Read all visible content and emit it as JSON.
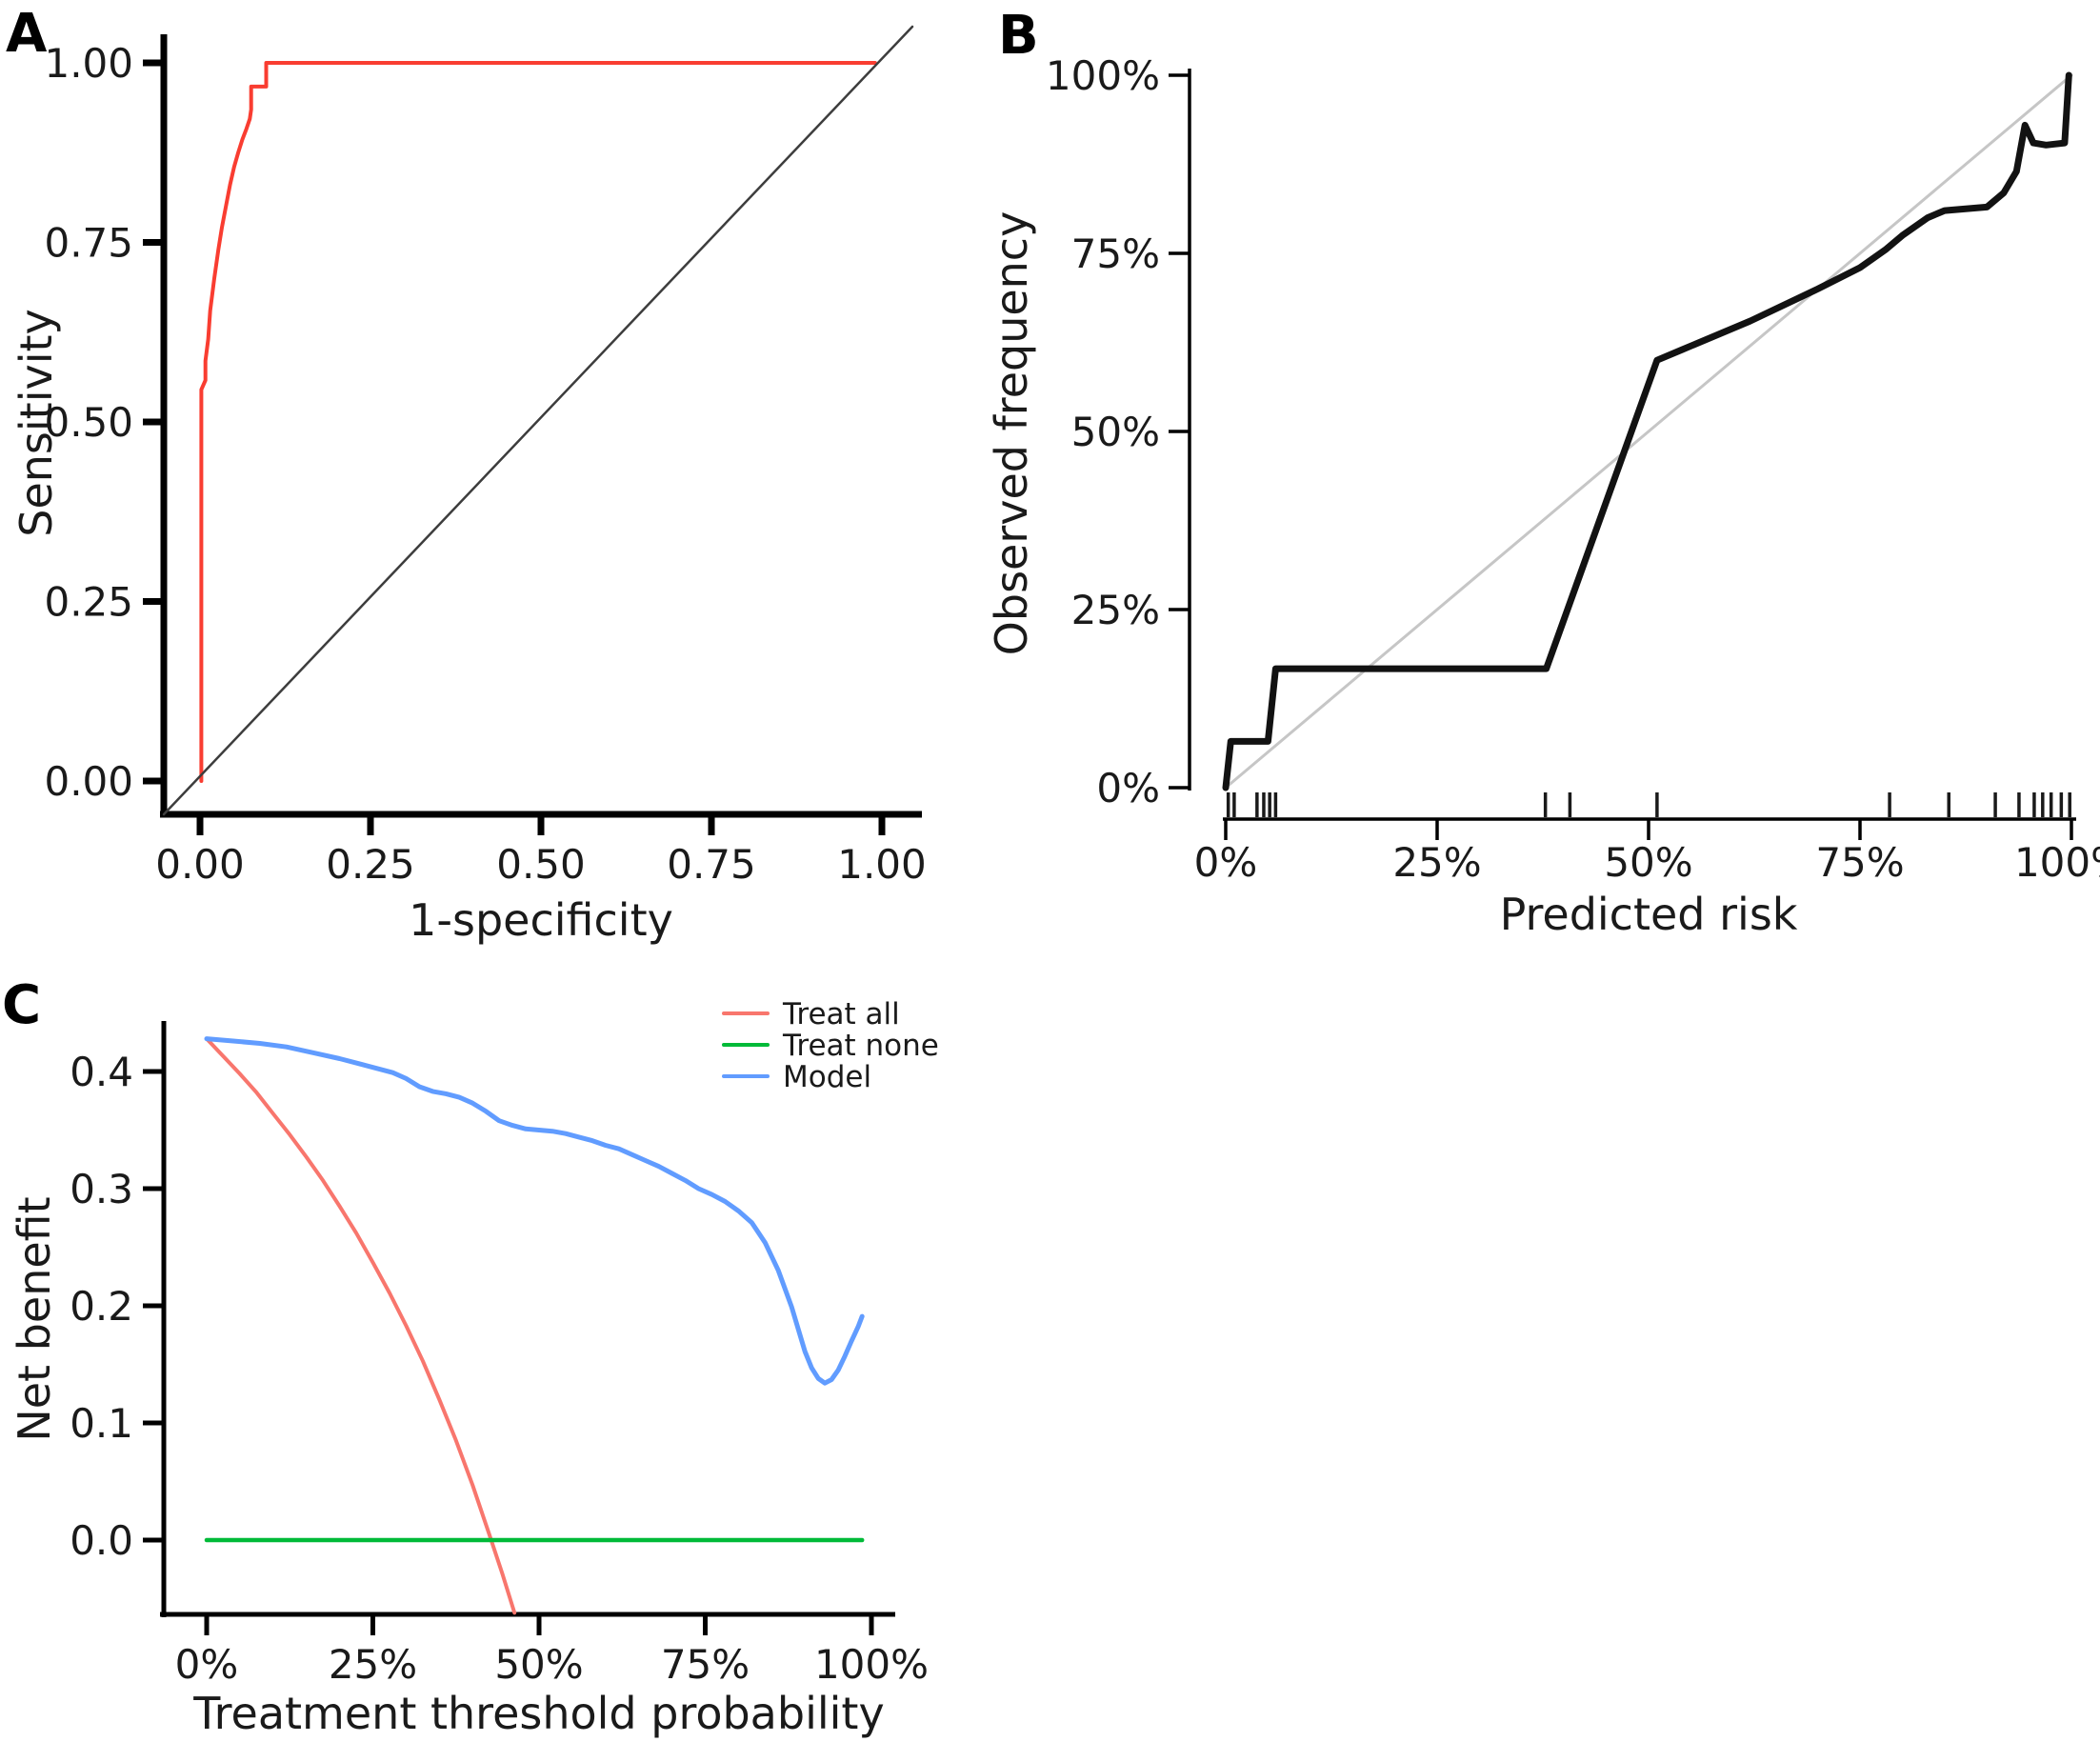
{
  "panels": {
    "a": {
      "label": "A"
    },
    "b": {
      "label": "B"
    },
    "c": {
      "label": "C"
    }
  },
  "chart_data": [
    {
      "panel": "A",
      "type": "line",
      "title": "",
      "xlabel": "1-specificity",
      "ylabel": "Sensitivity",
      "xlim": [
        0,
        1
      ],
      "ylim": [
        0,
        1
      ],
      "grid": false,
      "x_ticks": {
        "values": [
          0,
          0.25,
          0.5,
          0.75,
          1
        ],
        "labels": [
          "0.00",
          "0.25",
          "0.50",
          "0.75",
          "1.00"
        ]
      },
      "y_ticks": {
        "values": [
          0,
          0.25,
          0.5,
          0.75,
          1
        ],
        "labels": [
          "0.00",
          "0.25",
          "0.50",
          "0.75",
          "1.00"
        ]
      },
      "series": [
        {
          "name": "roc-curve",
          "color": "#f93d31",
          "width": 4,
          "points": [
            [
              0.002,
              0
            ],
            [
              0.002,
              0.545
            ],
            [
              0.008,
              0.558
            ],
            [
              0.008,
              0.585
            ],
            [
              0.012,
              0.615
            ],
            [
              0.015,
              0.655
            ],
            [
              0.021,
              0.7
            ],
            [
              0.027,
              0.74
            ],
            [
              0.032,
              0.77
            ],
            [
              0.038,
              0.8
            ],
            [
              0.044,
              0.83
            ],
            [
              0.05,
              0.855
            ],
            [
              0.056,
              0.875
            ],
            [
              0.062,
              0.893
            ],
            [
              0.068,
              0.908
            ],
            [
              0.073,
              0.922
            ],
            [
              0.075,
              0.935
            ],
            [
              0.075,
              0.967
            ],
            [
              0.097,
              0.967
            ],
            [
              0.097,
              1
            ],
            [
              0.99,
              1
            ]
          ]
        },
        {
          "name": "chance-diagonal",
          "color": "#3d3d3d",
          "width": 2.5,
          "extend_to_plot_box": true,
          "points": [
            [
              0,
              0
            ],
            [
              1,
              1
            ]
          ]
        }
      ]
    },
    {
      "panel": "B",
      "type": "line",
      "title": "",
      "xlabel": "Predicted risk",
      "ylabel": "Observed frequency",
      "xlim": [
        0,
        100
      ],
      "ylim": [
        0,
        100
      ],
      "grid": false,
      "x_ticks": {
        "values": [
          0,
          25,
          50,
          75,
          100
        ],
        "labels": [
          "0%",
          "25%",
          "50%",
          "75%",
          "100%"
        ]
      },
      "y_ticks": {
        "values": [
          0,
          25,
          50,
          75,
          100
        ],
        "labels": [
          "0%",
          "25%",
          "50%",
          "75%",
          "100%"
        ]
      },
      "series": [
        {
          "name": "ideal-diagonal",
          "color": "#c6c6c6",
          "width": 3,
          "points": [
            [
              0,
              0
            ],
            [
              100,
              100
            ]
          ]
        },
        {
          "name": "calibration-curve",
          "color": "#121212",
          "width": 7,
          "points": [
            [
              0,
              0
            ],
            [
              0.6,
              6.5
            ],
            [
              5,
              6.5
            ],
            [
              5.9,
              16.7
            ],
            [
              37.9,
              16.7
            ],
            [
              51,
              60
            ],
            [
              54,
              61.5
            ],
            [
              62,
              65.5
            ],
            [
              70,
              70
            ],
            [
              75,
              73
            ],
            [
              78,
              75.5
            ],
            [
              80,
              77.5
            ],
            [
              83,
              80
            ],
            [
              85,
              81
            ],
            [
              90,
              81.5
            ],
            [
              92,
              83.5
            ],
            [
              93.5,
              86.5
            ],
            [
              94.5,
              93
            ],
            [
              95.5,
              90.5
            ],
            [
              97,
              90.2
            ],
            [
              99.2,
              90.5
            ],
            [
              99.7,
              100
            ]
          ]
        }
      ],
      "rug": {
        "color": "#1a1a1a",
        "x": [
          0.3,
          1,
          3.7,
          4.5,
          5.2,
          5.9,
          37.8,
          40.7,
          51,
          78.5,
          85.5,
          91,
          93.8,
          95.6,
          96.6,
          97.6,
          98.8,
          99.8
        ]
      }
    },
    {
      "panel": "C",
      "type": "line",
      "title": "",
      "xlabel": "Treatment threshold probability",
      "ylabel": "Net benefit",
      "xlim": [
        0,
        100
      ],
      "ylim": [
        -0.07,
        0.45
      ],
      "grid": false,
      "legend_position": "top-right",
      "x_ticks": {
        "values": [
          0,
          25,
          50,
          75,
          100
        ],
        "labels": [
          "0%",
          "25%",
          "50%",
          "75%",
          "100%"
        ]
      },
      "y_ticks": {
        "values": [
          0,
          0.1,
          0.2,
          0.3,
          0.4
        ],
        "labels": [
          "0.0",
          "0.1",
          "0.2",
          "0.3",
          "0.4"
        ]
      },
      "series": [
        {
          "name": "treat-all",
          "legend": "Treat all",
          "color": "#f8766d",
          "width": 4,
          "points": [
            [
              0,
              0.428
            ],
            [
              2.5,
              0.413
            ],
            [
              5,
              0.398
            ],
            [
              7.5,
              0.382
            ],
            [
              10,
              0.364
            ],
            [
              12.5,
              0.346
            ],
            [
              15,
              0.327
            ],
            [
              17.5,
              0.307
            ],
            [
              20,
              0.285
            ],
            [
              22.5,
              0.262
            ],
            [
              25,
              0.237
            ],
            [
              27.5,
              0.211
            ],
            [
              30,
              0.183
            ],
            [
              32.5,
              0.153
            ],
            [
              35,
              0.12
            ],
            [
              37.5,
              0.085
            ],
            [
              40,
              0.047
            ],
            [
              42.5,
              0.005
            ],
            [
              44.5,
              -0.029
            ],
            [
              46.3,
              -0.062
            ]
          ]
        },
        {
          "name": "treat-none",
          "legend": "Treat none",
          "color": "#00ba38",
          "width": 4.5,
          "points": [
            [
              0,
              0
            ],
            [
              98.6,
              0
            ]
          ]
        },
        {
          "name": "model",
          "legend": "Model",
          "color": "#619cff",
          "width": 5,
          "points": [
            [
              0,
              0.428
            ],
            [
              4,
              0.426
            ],
            [
              8,
              0.424
            ],
            [
              12,
              0.421
            ],
            [
              16,
              0.416
            ],
            [
              20,
              0.411
            ],
            [
              24,
              0.405
            ],
            [
              28,
              0.399
            ],
            [
              30,
              0.394
            ],
            [
              32,
              0.387
            ],
            [
              34,
              0.383
            ],
            [
              36,
              0.381
            ],
            [
              38,
              0.378
            ],
            [
              40,
              0.373
            ],
            [
              42,
              0.366
            ],
            [
              44,
              0.358
            ],
            [
              46,
              0.354
            ],
            [
              48,
              0.351
            ],
            [
              50,
              0.35
            ],
            [
              52,
              0.349
            ],
            [
              54,
              0.347
            ],
            [
              56,
              0.344
            ],
            [
              58,
              0.341
            ],
            [
              60,
              0.337
            ],
            [
              62,
              0.334
            ],
            [
              64,
              0.329
            ],
            [
              66,
              0.324
            ],
            [
              68,
              0.319
            ],
            [
              70,
              0.313
            ],
            [
              72,
              0.307
            ],
            [
              74,
              0.3
            ],
            [
              76,
              0.295
            ],
            [
              78,
              0.289
            ],
            [
              80,
              0.281
            ],
            [
              82,
              0.271
            ],
            [
              84,
              0.254
            ],
            [
              86,
              0.23
            ],
            [
              88,
              0.199
            ],
            [
              90,
              0.161
            ],
            [
              91,
              0.147
            ],
            [
              92,
              0.138
            ],
            [
              93,
              0.134
            ],
            [
              94,
              0.137
            ],
            [
              95,
              0.145
            ],
            [
              96,
              0.157
            ],
            [
              97,
              0.17
            ],
            [
              98,
              0.182
            ],
            [
              98.6,
              0.191
            ]
          ]
        }
      ]
    }
  ]
}
